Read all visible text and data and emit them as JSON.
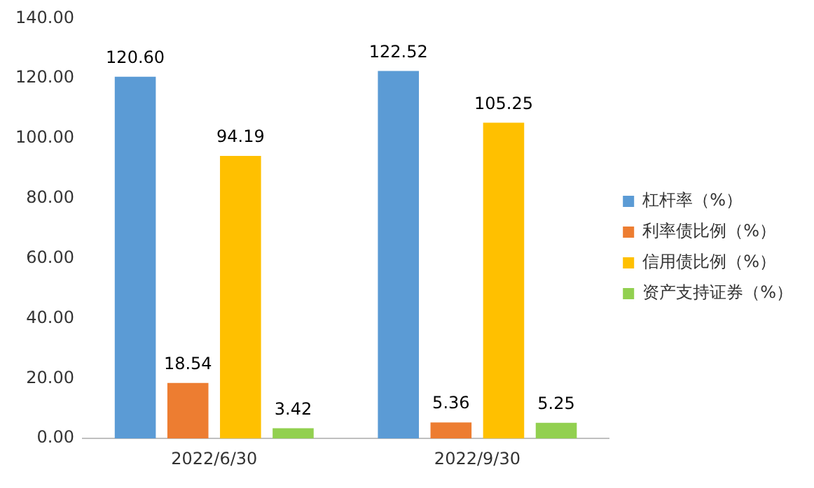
{
  "chart_data": {
    "type": "bar",
    "categories": [
      "2022/6/30",
      "2022/9/30"
    ],
    "series": [
      {
        "name": "杠杆率（%）",
        "color": "#5b9bd5",
        "values": [
          120.6,
          122.52
        ],
        "value_labels": [
          "120.60",
          "122.52"
        ]
      },
      {
        "name": "利率债比例（%）",
        "color": "#ed7d31",
        "values": [
          18.54,
          5.36
        ],
        "value_labels": [
          "18.54",
          "5.36"
        ]
      },
      {
        "name": "信用债比例（%）",
        "color": "#ffc000",
        "values": [
          94.19,
          105.25
        ],
        "value_labels": [
          "94.19",
          "105.25"
        ]
      },
      {
        "name": "资产支持证券（%）",
        "color": "#92d050",
        "values": [
          3.42,
          5.25
        ],
        "value_labels": [
          "3.42",
          "5.25"
        ]
      }
    ],
    "ylim": [
      0,
      140
    ],
    "yticks": [
      {
        "value": 0,
        "label": "0.00"
      },
      {
        "value": 20,
        "label": "20.00"
      },
      {
        "value": 40,
        "label": "40.00"
      },
      {
        "value": 60,
        "label": "60.00"
      },
      {
        "value": 80,
        "label": "80.00"
      },
      {
        "value": 100,
        "label": "100.00"
      },
      {
        "value": 120,
        "label": "120.00"
      },
      {
        "value": 140,
        "label": "140.00"
      }
    ],
    "grid": false,
    "legend": "right"
  }
}
